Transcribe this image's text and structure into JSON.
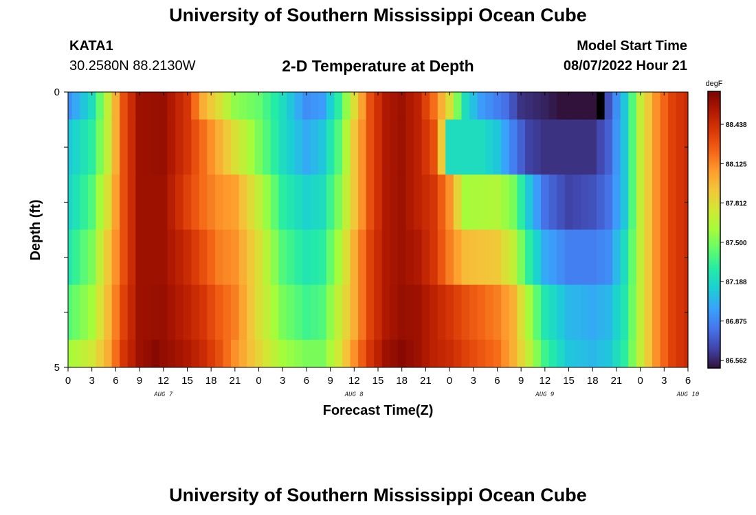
{
  "header": {
    "title": "University of Southern Mississippi Ocean Cube",
    "station": "KATA1",
    "coords": "30.2580N  88.2130W",
    "subtitle": "2-D Temperature at Depth",
    "model_start_label": "Model Start Time",
    "model_start_value": "08/07/2022 Hour 21"
  },
  "footer": {
    "title": "University of Southern Mississippi Ocean Cube"
  },
  "chart_data": {
    "type": "heatmap",
    "title": "2-D Temperature at Depth",
    "xlabel": "Forecast Time(Z)",
    "ylabel": "Depth (ft)",
    "x_start_hour": 0,
    "x_step_hours": 1,
    "x_count": 79,
    "x_tick_labels": [
      "0",
      "3",
      "6",
      "9",
      "12",
      "15",
      "18",
      "21",
      "0",
      "3",
      "6",
      "9",
      "12",
      "15",
      "18",
      "21",
      "0",
      "3",
      "6",
      "9",
      "12",
      "15",
      "18",
      "21",
      "0",
      "3",
      "6"
    ],
    "day_labels": [
      {
        "text": "AUG 7",
        "hour": 12
      },
      {
        "text": "AUG 8",
        "hour": 36
      },
      {
        "text": "AUG 9",
        "hour": 60
      },
      {
        "text": "AUG 10",
        "hour": 78
      }
    ],
    "y_tick_labels": [
      "0",
      "5"
    ],
    "ylim": [
      0,
      5
    ],
    "depth_bands": [
      0,
      0.5,
      1.5,
      2.5,
      3.5,
      4.5,
      5.0
    ],
    "colorbar": {
      "unit": "degF",
      "tick_labels": [
        "88.438",
        "88.125",
        "87.812",
        "87.500",
        "87.188",
        "86.875",
        "86.562"
      ],
      "tick_values": [
        88.438,
        88.125,
        87.812,
        87.5,
        87.188,
        86.875,
        86.562
      ],
      "range": [
        86.5,
        88.7
      ]
    },
    "keypoints": [
      [
        [
          0,
          86.9
        ],
        [
          3,
          87.2
        ],
        [
          5,
          87.7
        ],
        [
          7,
          88.3
        ],
        [
          9,
          88.6
        ],
        [
          12,
          88.62
        ],
        [
          15,
          88.4
        ],
        [
          17,
          88.0
        ],
        [
          19,
          87.8
        ],
        [
          21,
          87.55
        ],
        [
          24,
          87.45
        ],
        [
          27,
          87.2
        ],
        [
          30,
          86.9
        ],
        [
          32,
          86.95
        ],
        [
          34,
          87.3
        ],
        [
          36,
          87.8
        ],
        [
          38,
          88.3
        ],
        [
          40,
          88.55
        ],
        [
          42,
          88.6
        ],
        [
          44,
          88.5
        ],
        [
          46,
          88.2
        ],
        [
          48,
          87.8
        ],
        [
          50,
          87.2
        ],
        [
          52,
          86.95
        ],
        [
          55,
          86.8
        ],
        [
          57,
          86.6
        ],
        [
          60,
          86.55
        ],
        [
          62,
          86.5
        ],
        [
          66,
          86.5
        ],
        [
          68,
          86.7
        ],
        [
          70,
          87.1
        ],
        [
          72,
          87.7
        ],
        [
          74,
          88.1
        ],
        [
          76,
          88.35
        ],
        [
          78,
          88.45
        ]
      ],
      [
        [
          0,
          87.1
        ],
        [
          3,
          87.3
        ],
        [
          5,
          87.7
        ],
        [
          7,
          88.3
        ],
        [
          9,
          88.6
        ],
        [
          12,
          88.62
        ],
        [
          15,
          88.4
        ],
        [
          17,
          88.2
        ],
        [
          19,
          88.0
        ],
        [
          21,
          87.8
        ],
        [
          24,
          87.5
        ],
        [
          27,
          87.2
        ],
        [
          30,
          87.0
        ],
        [
          32,
          87.1
        ],
        [
          34,
          87.4
        ],
        [
          36,
          87.9
        ],
        [
          38,
          88.3
        ],
        [
          40,
          88.55
        ],
        [
          42,
          88.6
        ],
        [
          44,
          88.5
        ],
        [
          46,
          88.3
        ],
        [
          47,
          87.9
        ],
        [
          48,
          87.2
        ],
        [
          52,
          87.2
        ],
        [
          54,
          87.1
        ],
        [
          56,
          86.85
        ],
        [
          58,
          86.65
        ],
        [
          60,
          86.6
        ],
        [
          66,
          86.6
        ],
        [
          68,
          86.75
        ],
        [
          70,
          87.1
        ],
        [
          72,
          87.7
        ],
        [
          74,
          88.1
        ],
        [
          76,
          88.35
        ],
        [
          78,
          88.45
        ]
      ],
      [
        [
          0,
          87.15
        ],
        [
          3,
          87.4
        ],
        [
          5,
          87.8
        ],
        [
          7,
          88.3
        ],
        [
          9,
          88.6
        ],
        [
          12,
          88.6
        ],
        [
          15,
          88.35
        ],
        [
          17,
          88.2
        ],
        [
          19,
          88.1
        ],
        [
          21,
          88.05
        ],
        [
          24,
          87.7
        ],
        [
          27,
          87.3
        ],
        [
          30,
          87.15
        ],
        [
          32,
          87.2
        ],
        [
          34,
          87.5
        ],
        [
          36,
          87.9
        ],
        [
          38,
          88.3
        ],
        [
          40,
          88.55
        ],
        [
          42,
          88.6
        ],
        [
          44,
          88.5
        ],
        [
          46,
          88.4
        ],
        [
          48,
          88.1
        ],
        [
          50,
          87.6
        ],
        [
          54,
          87.65
        ],
        [
          56,
          87.5
        ],
        [
          58,
          87.1
        ],
        [
          60,
          86.8
        ],
        [
          63,
          86.65
        ],
        [
          66,
          86.7
        ],
        [
          68,
          86.8
        ],
        [
          70,
          87.1
        ],
        [
          72,
          87.7
        ],
        [
          74,
          88.1
        ],
        [
          76,
          88.35
        ],
        [
          78,
          88.45
        ]
      ],
      [
        [
          0,
          87.25
        ],
        [
          3,
          87.5
        ],
        [
          5,
          87.9
        ],
        [
          7,
          88.3
        ],
        [
          9,
          88.6
        ],
        [
          12,
          88.6
        ],
        [
          15,
          88.45
        ],
        [
          17,
          88.3
        ],
        [
          19,
          88.15
        ],
        [
          21,
          88.1
        ],
        [
          24,
          87.8
        ],
        [
          27,
          87.4
        ],
        [
          30,
          87.25
        ],
        [
          32,
          87.3
        ],
        [
          34,
          87.6
        ],
        [
          36,
          88.0
        ],
        [
          38,
          88.35
        ],
        [
          40,
          88.55
        ],
        [
          42,
          88.6
        ],
        [
          44,
          88.55
        ],
        [
          46,
          88.4
        ],
        [
          48,
          88.15
        ],
        [
          50,
          87.95
        ],
        [
          54,
          87.9
        ],
        [
          56,
          87.7
        ],
        [
          58,
          87.3
        ],
        [
          60,
          87.0
        ],
        [
          63,
          86.85
        ],
        [
          66,
          86.85
        ],
        [
          68,
          86.9
        ],
        [
          70,
          87.2
        ],
        [
          72,
          87.7
        ],
        [
          74,
          88.1
        ],
        [
          76,
          88.35
        ],
        [
          78,
          88.45
        ]
      ],
      [
        [
          0,
          87.4
        ],
        [
          3,
          87.6
        ],
        [
          5,
          87.95
        ],
        [
          7,
          88.35
        ],
        [
          9,
          88.6
        ],
        [
          12,
          88.62
        ],
        [
          15,
          88.5
        ],
        [
          17,
          88.4
        ],
        [
          19,
          88.25
        ],
        [
          21,
          88.15
        ],
        [
          24,
          87.8
        ],
        [
          27,
          87.5
        ],
        [
          30,
          87.35
        ],
        [
          32,
          87.4
        ],
        [
          34,
          87.7
        ],
        [
          36,
          88.0
        ],
        [
          38,
          88.35
        ],
        [
          40,
          88.55
        ],
        [
          42,
          88.62
        ],
        [
          44,
          88.6
        ],
        [
          46,
          88.5
        ],
        [
          48,
          88.4
        ],
        [
          50,
          88.3
        ],
        [
          54,
          88.15
        ],
        [
          56,
          88.0
        ],
        [
          58,
          87.6
        ],
        [
          60,
          87.25
        ],
        [
          63,
          87.05
        ],
        [
          66,
          87.0
        ],
        [
          68,
          87.05
        ],
        [
          70,
          87.25
        ],
        [
          72,
          87.7
        ],
        [
          74,
          88.1
        ],
        [
          76,
          88.35
        ],
        [
          78,
          88.45
        ]
      ],
      [
        [
          0,
          87.6
        ],
        [
          3,
          87.75
        ],
        [
          5,
          88.0
        ],
        [
          7,
          88.4
        ],
        [
          9,
          88.6
        ],
        [
          11,
          88.66
        ],
        [
          15,
          88.55
        ],
        [
          17,
          88.45
        ],
        [
          19,
          88.3
        ],
        [
          21,
          88.1
        ],
        [
          24,
          87.85
        ],
        [
          27,
          87.6
        ],
        [
          30,
          87.5
        ],
        [
          32,
          87.5
        ],
        [
          34,
          87.75
        ],
        [
          36,
          88.1
        ],
        [
          38,
          88.4
        ],
        [
          40,
          88.6
        ],
        [
          42,
          88.66
        ],
        [
          44,
          88.6
        ],
        [
          46,
          88.5
        ],
        [
          48,
          88.45
        ],
        [
          50,
          88.35
        ],
        [
          54,
          88.2
        ],
        [
          56,
          88.0
        ],
        [
          58,
          87.7
        ],
        [
          60,
          87.35
        ],
        [
          63,
          87.1
        ],
        [
          66,
          87.05
        ],
        [
          68,
          87.1
        ],
        [
          70,
          87.3
        ],
        [
          72,
          87.7
        ],
        [
          74,
          88.1
        ],
        [
          76,
          88.35
        ],
        [
          78,
          88.45
        ]
      ]
    ],
    "missing_cells": [
      {
        "band": 0,
        "hour": 67
      }
    ],
    "missing_color": "#000000",
    "colormap": [
      "#30123b",
      "#4145ab",
      "#4675ed",
      "#39a2fc",
      "#1bcfd4",
      "#24eca6",
      "#61fc6c",
      "#a4fc3b",
      "#d1e834",
      "#f3c63a",
      "#fe9b2d",
      "#f36315",
      "#d93806",
      "#b11901",
      "#7a0402"
    ]
  }
}
